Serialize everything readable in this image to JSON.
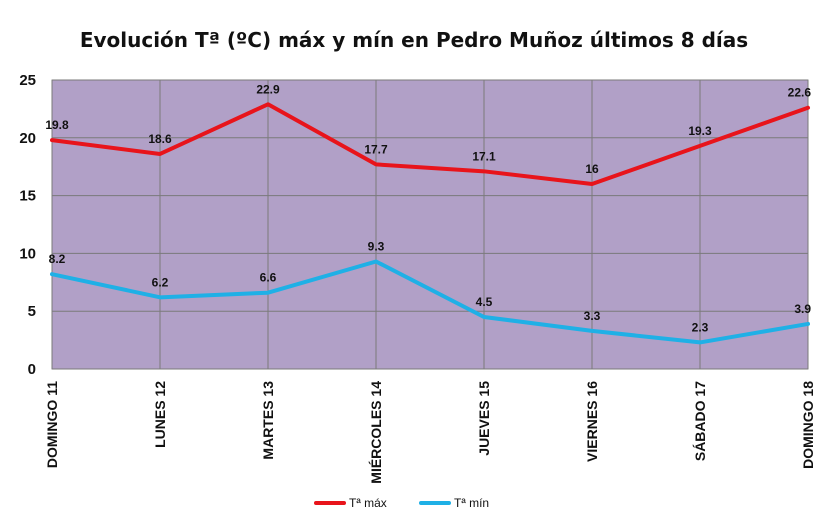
{
  "chart_data": {
    "type": "line",
    "title": "Evolución Tª (ºC) máx y mín en Pedro Muñoz últimos 8 días",
    "categories": [
      "DOMINGO 11",
      "LUNES 12",
      "MARTES 13",
      "MIÉRCOLES 14",
      "JUEVES 15",
      "VIERNES 16",
      "SÁBADO 17",
      "DOMINGO 18"
    ],
    "series": [
      {
        "name": "Tª máx",
        "values": [
          19.8,
          18.6,
          22.9,
          17.7,
          17.1,
          16,
          19.3,
          22.6
        ],
        "color": "#e8141b"
      },
      {
        "name": "Tª mín",
        "values": [
          8.2,
          6.2,
          6.6,
          9.3,
          4.5,
          3.3,
          2.3,
          3.9
        ],
        "color": "#1fb0e6"
      }
    ],
    "ylim": [
      0,
      25
    ],
    "yticks": [
      0,
      5,
      10,
      15,
      20,
      25
    ],
    "grid": true,
    "plot_background": "#b1a0c7",
    "legend_position": "bottom"
  }
}
